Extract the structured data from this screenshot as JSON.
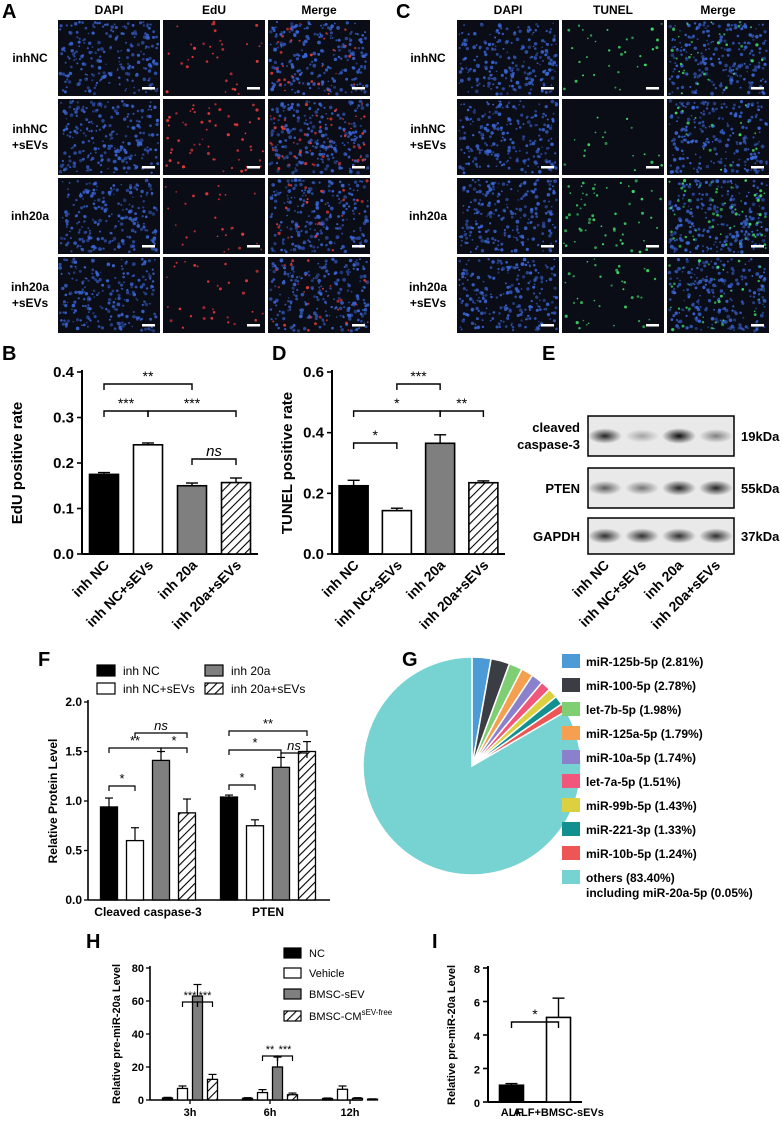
{
  "colors": {
    "black": "#000000",
    "white": "#ffffff",
    "gray": "#7f7f7f",
    "micro_bg": "#0a0c16",
    "dapi": "#3a66d6",
    "edu": "#e23a3a",
    "tunel": "#3fd866"
  },
  "panel_letters": [
    "A",
    "B",
    "C",
    "D",
    "E",
    "F",
    "G",
    "H",
    "I"
  ],
  "panelA": {
    "columns": [
      "DAPI",
      "EdU",
      "Merge"
    ],
    "rows": [
      {
        "label1": "inhNC",
        "label2": ""
      },
      {
        "label1": "inhNC",
        "label2": "+sEVs"
      },
      {
        "label1": "inh20a",
        "label2": ""
      },
      {
        "label1": "inh20a",
        "label2": "+sEVs"
      }
    ],
    "density": [
      0.55,
      0.95,
      0.45,
      0.5
    ]
  },
  "panelC": {
    "columns": [
      "DAPI",
      "TUNEL",
      "Merge"
    ],
    "rows": [
      {
        "label1": "inhNC",
        "label2": ""
      },
      {
        "label1": "inhNC",
        "label2": "+sEVs"
      },
      {
        "label1": "inh20a",
        "label2": ""
      },
      {
        "label1": "inh20a",
        "label2": "+sEVs"
      }
    ],
    "density": [
      0.55,
      0.3,
      0.95,
      0.6
    ]
  },
  "chart_data": [
    {
      "id": "B",
      "type": "bar",
      "categories": [
        "inh NC",
        "inh NC+sEVs",
        "inh 20a",
        "inh 20a+sEVs"
      ],
      "values": [
        0.175,
        0.24,
        0.15,
        0.157
      ],
      "errors": [
        0.004,
        0.004,
        0.006,
        0.01
      ],
      "fills": [
        "black",
        "white",
        "gray",
        "hatch"
      ],
      "ylabel": "EdU positive rate",
      "ylim": [
        0,
        0.4
      ],
      "yticks": [
        "0.0",
        "0.1",
        "0.2",
        "0.3",
        "0.4"
      ],
      "significance": [
        {
          "from": 0,
          "to": 2,
          "label": "**"
        },
        {
          "from": 0,
          "to": 1,
          "label": "***"
        },
        {
          "from": 1,
          "to": 3,
          "label": "***"
        },
        {
          "from": 2,
          "to": 3,
          "label": "ns"
        }
      ]
    },
    {
      "id": "D",
      "type": "bar",
      "categories": [
        "inh NC",
        "inh NC+sEVs",
        "inh 20a",
        "inh 20a+sEVs"
      ],
      "values": [
        0.225,
        0.143,
        0.365,
        0.235
      ],
      "errors": [
        0.018,
        0.008,
        0.028,
        0.006
      ],
      "fills": [
        "black",
        "white",
        "gray",
        "hatch"
      ],
      "ylabel": "TUNEL positive rate",
      "ylim": [
        0,
        0.6
      ],
      "yticks": [
        "0.0",
        "0.2",
        "0.4",
        "0.6"
      ],
      "significance": [
        {
          "from": 1,
          "to": 2,
          "label": "***"
        },
        {
          "from": 0,
          "to": 2,
          "label": "*"
        },
        {
          "from": 2,
          "to": 3,
          "label": "**"
        },
        {
          "from": 0,
          "to": 1,
          "label": "*"
        }
      ]
    },
    {
      "id": "F",
      "type": "bar",
      "categories": [
        "Cleaved caspase-3",
        "PTEN"
      ],
      "series": [
        {
          "name": "inh NC",
          "fill": "black",
          "values": [
            0.94,
            1.04
          ],
          "errors": [
            0.09,
            0.02
          ]
        },
        {
          "name": "inh NC+sEVs",
          "fill": "white",
          "values": [
            0.6,
            0.75
          ],
          "errors": [
            0.13,
            0.06
          ]
        },
        {
          "name": "inh 20a",
          "fill": "gray",
          "values": [
            1.41,
            1.34
          ],
          "errors": [
            0.09,
            0.1
          ]
        },
        {
          "name": "inh 20a+sEVs",
          "fill": "hatch",
          "values": [
            0.88,
            1.5
          ],
          "errors": [
            0.14,
            0.1
          ]
        }
      ],
      "ylabel": "Relative Protein Level",
      "ylim": [
        0,
        2.0
      ],
      "yticks": [
        "0.0",
        "0.5",
        "1.0",
        "1.5",
        "2.0"
      ],
      "significance": [
        {
          "group": 0,
          "from": 0,
          "to": 1,
          "label": "*"
        },
        {
          "group": 0,
          "from": 0,
          "to": 2,
          "label": "**"
        },
        {
          "group": 0,
          "from": 1,
          "to": 3,
          "label": "ns"
        },
        {
          "group": 0,
          "from": 2,
          "to": 3,
          "label": "*"
        },
        {
          "group": 1,
          "from": 0,
          "to": 1,
          "label": "*"
        },
        {
          "group": 1,
          "from": 0,
          "to": 2,
          "label": "*"
        },
        {
          "group": 1,
          "from": 0,
          "to": 3,
          "label": "**"
        },
        {
          "group": 1,
          "from": 2,
          "to": 3,
          "label": "ns"
        }
      ]
    },
    {
      "id": "G",
      "type": "pie",
      "slices": [
        {
          "label": "miR-125b-5p (2.81%)",
          "value": 2.81,
          "color": "#4d9bd6"
        },
        {
          "label": "miR-100-5p (2.78%)",
          "value": 2.78,
          "color": "#3b3d44"
        },
        {
          "label": "let-7b-5p (1.98%)",
          "value": 1.98,
          "color": "#7fce73"
        },
        {
          "label": "miR-125a-5p (1.79%)",
          "value": 1.79,
          "color": "#f4a050"
        },
        {
          "label": "miR-10a-5p (1.74%)",
          "value": 1.74,
          "color": "#8a80cc"
        },
        {
          "label": "let-7a-5p (1.51%)",
          "value": 1.51,
          "color": "#f0577a"
        },
        {
          "label": "miR-99b-5p (1.43%)",
          "value": 1.43,
          "color": "#dcd040"
        },
        {
          "label": "miR-221-3p (1.33%)",
          "value": 1.33,
          "color": "#129090"
        },
        {
          "label": "miR-10b-5p (1.24%)",
          "value": 1.24,
          "color": "#ee5555"
        },
        {
          "label": "others (83.40%)",
          "label2": "including miR-20a-5p  (0.05%)",
          "value": 83.4,
          "color": "#76d3d1"
        }
      ]
    },
    {
      "id": "H",
      "type": "bar",
      "categories": [
        "3h",
        "6h",
        "12h"
      ],
      "series": [
        {
          "name": "NC",
          "fill": "black",
          "values": [
            1.2,
            1.0,
            0.9
          ],
          "errors": [
            0.4,
            0.4,
            0.3
          ]
        },
        {
          "name": "Vehicle",
          "fill": "white",
          "values": [
            7,
            4.5,
            6.5
          ],
          "errors": [
            1.5,
            1.8,
            2.0
          ]
        },
        {
          "name": "BMSC-sEV",
          "fill": "gray",
          "values": [
            63,
            20,
            1.0
          ],
          "errors": [
            7,
            6,
            0.4
          ]
        },
        {
          "name": "BMSC-CM",
          "name_sup": "sEV-free",
          "fill": "hatch",
          "values": [
            12.5,
            3.2,
            0.5
          ],
          "errors": [
            3,
            1,
            0.2
          ]
        }
      ],
      "ylabel": "Relative pre-miR-20a Level",
      "ylim": [
        0,
        80
      ],
      "yticks": [
        "0",
        "20",
        "40",
        "60",
        "80"
      ],
      "significance": [
        {
          "group": 0,
          "from": 1,
          "to": 2,
          "label": "***"
        },
        {
          "group": 0,
          "from": 2,
          "to": 3,
          "label": "***"
        },
        {
          "group": 1,
          "from": 1,
          "to": 2,
          "label": "**"
        },
        {
          "group": 1,
          "from": 2,
          "to": 3,
          "label": "***"
        }
      ]
    },
    {
      "id": "I",
      "type": "bar",
      "categories": [
        "ALF",
        "ALF+BMSC-sEVs"
      ],
      "values": [
        1.0,
        5.05
      ],
      "errors": [
        0.1,
        1.15
      ],
      "fills": [
        "black",
        "white"
      ],
      "ylabel": "Relative pre-miR-20a Level",
      "ylim": [
        0,
        8
      ],
      "yticks": [
        "0",
        "2",
        "4",
        "6",
        "8"
      ],
      "significance": [
        {
          "from": 0,
          "to": 1,
          "label": "*"
        }
      ]
    }
  ],
  "panelE": {
    "bands": [
      {
        "label1": "cleaved",
        "label2": "caspase-3",
        "kda": "19kDa",
        "intensity": [
          0.85,
          0.3,
          0.95,
          0.45
        ]
      },
      {
        "label1": "PTEN",
        "label2": "",
        "kda": "55kDa",
        "intensity": [
          0.6,
          0.5,
          0.85,
          0.85
        ]
      },
      {
        "label1": "GAPDH",
        "label2": "",
        "kda": "37kDa",
        "intensity": [
          0.8,
          0.8,
          0.8,
          0.8
        ]
      }
    ],
    "lanes": [
      "inh NC",
      "inh NC+sEVs",
      "inh 20a",
      "inh 20a+sEVs"
    ]
  }
}
